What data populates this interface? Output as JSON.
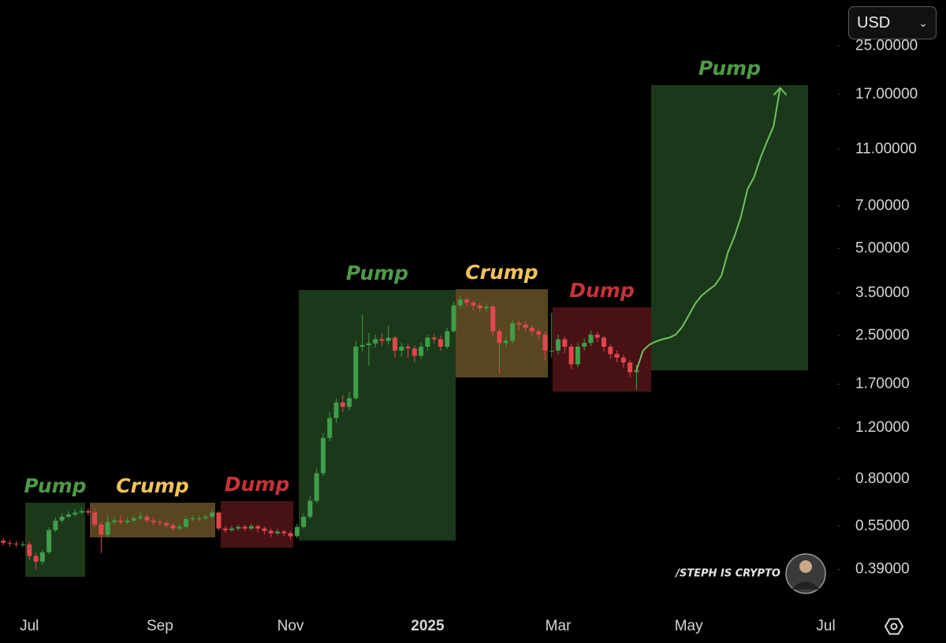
{
  "chart_data": {
    "type": "candlestick",
    "log_scale": true,
    "ylim": [
      0.29,
      36
    ],
    "yticks": [
      {
        "value": 0.39,
        "label": "0.39000"
      },
      {
        "value": 0.55,
        "label": "0.55000"
      },
      {
        "value": 0.8,
        "label": "0.80000"
      },
      {
        "value": 1.2,
        "label": "1.20000"
      },
      {
        "value": 1.7,
        "label": "1.70000"
      },
      {
        "value": 2.5,
        "label": "2.50000"
      },
      {
        "value": 3.5,
        "label": "3.50000"
      },
      {
        "value": 5,
        "label": "5.00000"
      },
      {
        "value": 7,
        "label": "7.00000"
      },
      {
        "value": 11,
        "label": "11.00000"
      },
      {
        "value": 17,
        "label": "17.00000"
      },
      {
        "value": 25,
        "label": "25.00000"
      }
    ],
    "categories": [
      null,
      null,
      null,
      null,
      "Jul",
      null,
      null,
      null,
      null,
      null,
      null,
      null,
      null,
      null,
      null,
      null,
      null,
      null,
      null,
      null,
      null,
      null,
      null,
      null,
      "Sep",
      null,
      null,
      null,
      null,
      null,
      null,
      null,
      null,
      null,
      null,
      null,
      null,
      null,
      null,
      null,
      null,
      null,
      null,
      null,
      "Nov",
      null,
      null,
      null,
      null,
      null,
      null,
      null,
      null,
      null,
      null,
      null,
      null,
      null,
      null,
      null,
      null,
      null,
      null,
      null,
      null,
      "2025",
      null,
      null,
      null,
      null,
      null,
      null,
      null,
      null,
      null,
      null,
      null,
      null,
      null,
      null,
      null,
      null,
      null,
      null,
      null,
      "Mar",
      null,
      null,
      null,
      null,
      null,
      null,
      null,
      null,
      null,
      null,
      null,
      null,
      null,
      null,
      null,
      null,
      null,
      null,
      null,
      "May",
      null,
      null,
      null,
      null,
      null,
      null,
      null,
      null,
      null,
      null,
      null,
      null,
      null,
      null,
      null,
      null,
      null,
      null,
      null,
      null,
      "Jul",
      null
    ],
    "open": [
      0.49,
      0.482,
      0.479,
      0.476,
      0.476,
      0.434,
      0.415,
      0.447,
      0.533,
      0.575,
      0.593,
      0.604,
      0.613,
      0.62,
      0.613,
      0.557,
      0.514,
      0.568,
      0.575,
      0.568,
      0.575,
      0.586,
      0.593,
      0.575,
      0.568,
      0.564,
      0.554,
      0.54,
      0.547,
      0.582,
      0.586,
      0.586,
      0.593,
      0.613,
      0.54,
      0.533,
      0.54,
      0.547,
      0.54,
      0.55,
      0.54,
      0.53,
      0.52,
      0.527,
      0.52,
      0.508,
      0.547,
      0.593,
      0.673,
      0.838,
      1.11,
      1.3,
      1.47,
      1.42,
      1.52,
      2.29,
      2.32,
      2.35,
      2.43,
      2.4,
      2.46,
      2.22,
      2.29,
      2.26,
      2.13,
      2.29,
      2.46,
      2.43,
      2.29,
      2.59,
      3.18,
      3.33,
      3.25,
      3.18,
      3.11,
      3.15,
      2.59,
      2.36,
      2.4,
      2.76,
      2.73,
      2.66,
      2.59,
      2.52,
      2.22,
      2.22,
      2.43,
      2.29,
      1.99,
      2.29,
      2.36,
      2.52,
      2.46,
      2.29,
      2.16,
      2.1,
      2.02,
      1.87,
      null,
      null,
      null,
      null,
      null,
      null,
      null,
      null,
      null,
      null,
      null,
      null,
      null,
      null,
      null,
      null,
      null,
      null,
      null,
      null,
      null,
      null,
      null,
      null,
      null,
      null,
      null,
      null,
      null,
      null
    ],
    "high": [
      0.5,
      0.494,
      0.49,
      0.488,
      0.485,
      0.445,
      0.455,
      0.545,
      0.59,
      0.61,
      0.62,
      0.63,
      0.635,
      0.632,
      0.635,
      0.57,
      0.6,
      0.59,
      0.6,
      0.588,
      0.6,
      0.615,
      0.605,
      0.59,
      0.58,
      0.575,
      0.565,
      0.56,
      0.595,
      0.598,
      0.6,
      0.605,
      0.63,
      0.62,
      0.55,
      0.552,
      0.558,
      0.556,
      0.562,
      0.558,
      0.548,
      0.54,
      0.54,
      0.535,
      0.528,
      0.56,
      0.61,
      0.7,
      0.87,
      1.15,
      1.36,
      1.52,
      1.56,
      1.6,
      2.4,
      2.95,
      2.55,
      2.52,
      2.55,
      2.7,
      2.5,
      2.36,
      2.35,
      2.32,
      2.36,
      2.52,
      2.53,
      2.5,
      2.66,
      3.28,
      3.45,
      3.4,
      3.3,
      3.25,
      3.24,
      3.2,
      2.65,
      2.48,
      2.85,
      2.82,
      2.8,
      2.72,
      2.65,
      2.58,
      3.0,
      2.52,
      2.48,
      2.35,
      2.36,
      2.45,
      2.6,
      2.58,
      2.5,
      2.33,
      2.22,
      2.15,
      2.06,
      1.98,
      null,
      null,
      null,
      null,
      null,
      null,
      null,
      null,
      null,
      null,
      null,
      null,
      null,
      null,
      null,
      null,
      null,
      null,
      null,
      null,
      null,
      null,
      null,
      null,
      null,
      null,
      null,
      null,
      null,
      null
    ],
    "low": [
      0.47,
      0.468,
      0.465,
      0.466,
      0.42,
      0.39,
      0.405,
      0.44,
      0.525,
      0.565,
      0.585,
      0.595,
      0.605,
      0.6,
      0.545,
      0.445,
      0.505,
      0.555,
      0.558,
      0.558,
      0.565,
      0.578,
      0.565,
      0.555,
      0.552,
      0.54,
      0.528,
      0.532,
      0.54,
      0.572,
      0.575,
      0.578,
      0.585,
      0.53,
      0.522,
      0.525,
      0.53,
      0.528,
      0.532,
      0.525,
      0.515,
      0.505,
      0.512,
      0.508,
      0.495,
      0.5,
      0.54,
      0.585,
      0.66,
      0.82,
      1.08,
      1.25,
      1.36,
      1.38,
      1.5,
      2.2,
      1.97,
      2.28,
      2.3,
      2.33,
      2.1,
      2.12,
      2.1,
      2.02,
      2.08,
      2.22,
      2.35,
      2.22,
      2.25,
      2.55,
      3.1,
      3.15,
      3.05,
      3.0,
      3.02,
      2.5,
      1.85,
      2.28,
      2.35,
      2.62,
      2.58,
      2.5,
      2.42,
      2.05,
      2.1,
      2.15,
      2.18,
      1.92,
      1.95,
      2.22,
      2.3,
      2.38,
      2.2,
      2.08,
      2.02,
      1.94,
      1.8,
      1.62,
      null,
      null,
      null,
      null,
      null,
      null,
      null,
      null,
      null,
      null,
      null,
      null,
      null,
      null,
      null,
      null,
      null,
      null,
      null,
      null,
      null,
      null,
      null,
      null,
      null,
      null,
      null,
      null,
      null,
      null
    ],
    "close": [
      0.482,
      0.479,
      0.476,
      0.476,
      0.434,
      0.415,
      0.447,
      0.533,
      0.575,
      0.593,
      0.604,
      0.613,
      0.62,
      0.613,
      0.557,
      0.514,
      0.568,
      0.575,
      0.568,
      0.575,
      0.586,
      0.593,
      0.575,
      0.568,
      0.564,
      0.554,
      0.54,
      0.547,
      0.582,
      0.586,
      0.586,
      0.593,
      0.613,
      0.54,
      0.533,
      0.54,
      0.547,
      0.54,
      0.55,
      0.54,
      0.53,
      0.52,
      0.527,
      0.52,
      0.508,
      0.547,
      0.593,
      0.673,
      0.838,
      1.11,
      1.3,
      1.47,
      1.42,
      1.52,
      2.29,
      2.32,
      2.35,
      2.43,
      2.4,
      2.46,
      2.22,
      2.29,
      2.26,
      2.13,
      2.29,
      2.46,
      2.43,
      2.29,
      2.59,
      3.18,
      3.33,
      3.25,
      3.18,
      3.11,
      3.15,
      2.59,
      2.36,
      2.4,
      2.76,
      2.73,
      2.66,
      2.59,
      2.52,
      2.22,
      2.22,
      2.43,
      2.29,
      1.99,
      2.29,
      2.36,
      2.52,
      2.46,
      2.29,
      2.16,
      2.1,
      2.02,
      1.87,
      1.9,
      null,
      null,
      null,
      null,
      null,
      null,
      null,
      null,
      null,
      null,
      null,
      null,
      null,
      null,
      null,
      null,
      null,
      null,
      null,
      null,
      null,
      null,
      null,
      null,
      null,
      null,
      null,
      null,
      null,
      null
    ],
    "up_color": "#3f9e4a",
    "down_color": "#e0474c",
    "projection": {
      "color": "#6fc25f",
      "values": [
        null,
        null,
        null,
        null,
        null,
        null,
        null,
        null,
        null,
        null,
        null,
        null,
        null,
        null,
        null,
        null,
        null,
        null,
        null,
        null,
        null,
        null,
        null,
        null,
        null,
        null,
        null,
        null,
        null,
        null,
        null,
        null,
        null,
        null,
        null,
        null,
        null,
        null,
        null,
        null,
        null,
        null,
        null,
        null,
        null,
        null,
        null,
        null,
        null,
        null,
        null,
        null,
        null,
        null,
        null,
        null,
        null,
        null,
        null,
        null,
        null,
        null,
        null,
        null,
        null,
        null,
        null,
        null,
        null,
        null,
        null,
        null,
        null,
        null,
        null,
        null,
        null,
        null,
        null,
        null,
        null,
        null,
        null,
        null,
        null,
        null,
        null,
        null,
        null,
        null,
        null,
        null,
        null,
        null,
        null,
        null,
        null,
        1.9,
        2.22,
        2.33,
        2.39,
        2.43,
        2.46,
        2.52,
        2.68,
        2.94,
        3.23,
        3.44,
        3.59,
        3.73,
        4.02,
        4.85,
        5.49,
        6.43,
        8.0,
        8.8,
        10.3,
        11.7,
        13.2,
        17.9,
        null,
        null,
        null,
        null,
        null,
        null,
        null,
        null
      ]
    },
    "annotations": [
      {
        "text": "Pump",
        "color": "#4e9a47"
      },
      {
        "text": "Crump",
        "color": "#f2c25a"
      },
      {
        "text": "Dump",
        "color": "#c8323a"
      },
      {
        "text": "Pump",
        "color": "#4e9a47"
      },
      {
        "text": "Crump",
        "color": "#f2c25a"
      },
      {
        "text": "Dump",
        "color": "#c8323a"
      },
      {
        "text": "Pump",
        "color": "#4e9a47"
      }
    ],
    "currency": "USD",
    "watermark": "/STEPH IS CRYPTO"
  }
}
